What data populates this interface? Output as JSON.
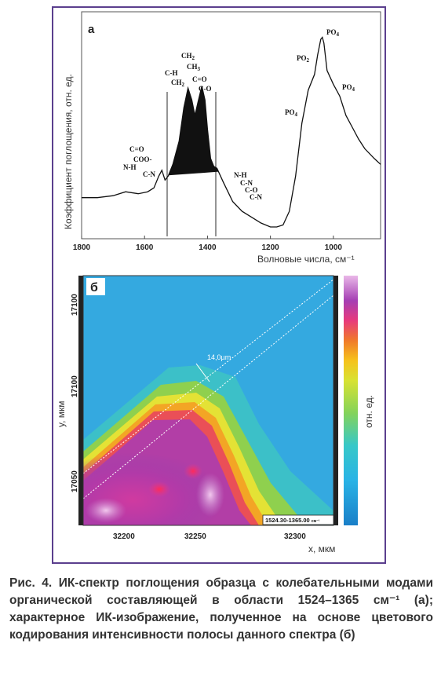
{
  "panel_a": {
    "letter": "а",
    "ylabel": "Коэффициент поглощения, отн. ед.",
    "xlabel": "Волновые числа, см⁻¹",
    "x_ticks": [
      "1800",
      "1600",
      "1400",
      "1200",
      "1000"
    ],
    "annotations": {
      "c_o_left": "C=O",
      "coo": "COO-",
      "nh_left": "N-H",
      "cn_left": "C-N",
      "ch": "C-H",
      "ch2_b": "CH",
      "ch2_top": "CH",
      "ch3": "CH",
      "c_o_mid": "C=O",
      "co_mid": "C-O",
      "nh_right": "N-H",
      "cn_right": "C-N",
      "co_right": "C-O",
      "cn_right2": "C-N",
      "po4_a": "PO",
      "po2": "PO",
      "po4_top": "PO",
      "po4_r": "PO",
      "sub_2": "2",
      "sub_3": "3",
      "sub_4": "4"
    }
  },
  "panel_b": {
    "letter": "б",
    "ylabel": "y, мкм",
    "xlabel": "x, мкм",
    "colorbar_label": "отн. ед.",
    "y_ticks": [
      "17100",
      "17100",
      "17050"
    ],
    "x_ticks": [
      "32200",
      "32250",
      "32300"
    ],
    "scale_text": "14,0µm",
    "range_text": "1524.30-1365.00",
    "range_unit": "см⁻¹"
  },
  "caption": {
    "text": "Рис. 4. ИК-спектр поглощения образца с колебательными модами органической составляющей в области 1524–1365 см⁻¹ (а); характерное ИК-изображение, полученное на основе цветового кодирования интенсивности полосы данного спектра (б)"
  },
  "chart_data": {
    "type": "line",
    "xlabel": "Волновые числа, см⁻¹",
    "ylabel": "Коэффициент поглощения, отн. ед.",
    "xlim": [
      1800,
      850
    ],
    "x_reversed": true,
    "ylim": [
      0,
      1
    ],
    "shaded_region": [
      1524,
      1365
    ],
    "series": [
      {
        "x": [
          1800,
          1750,
          1700,
          1660,
          1620,
          1590,
          1570,
          1555,
          1545,
          1535,
          1525,
          1510,
          1490,
          1475,
          1462,
          1450,
          1440,
          1430,
          1418,
          1408,
          1400,
          1390,
          1380,
          1370,
          1350,
          1320,
          1290,
          1260,
          1230,
          1200,
          1180,
          1160,
          1140,
          1120,
          1100,
          1080,
          1060,
          1050,
          1040,
          1035,
          1030,
          1020,
          1000,
          980,
          960,
          940,
          920,
          900,
          870,
          850
        ],
        "y": [
          0.17,
          0.17,
          0.18,
          0.2,
          0.19,
          0.2,
          0.22,
          0.28,
          0.31,
          0.26,
          0.28,
          0.34,
          0.46,
          0.63,
          0.73,
          0.67,
          0.59,
          0.66,
          0.74,
          0.67,
          0.52,
          0.37,
          0.33,
          0.32,
          0.25,
          0.15,
          0.1,
          0.07,
          0.04,
          0.02,
          0.02,
          0.03,
          0.1,
          0.28,
          0.55,
          0.72,
          0.8,
          0.9,
          0.98,
          0.99,
          0.96,
          0.82,
          0.75,
          0.69,
          0.59,
          0.53,
          0.47,
          0.42,
          0.37,
          0.34
        ]
      }
    ]
  }
}
